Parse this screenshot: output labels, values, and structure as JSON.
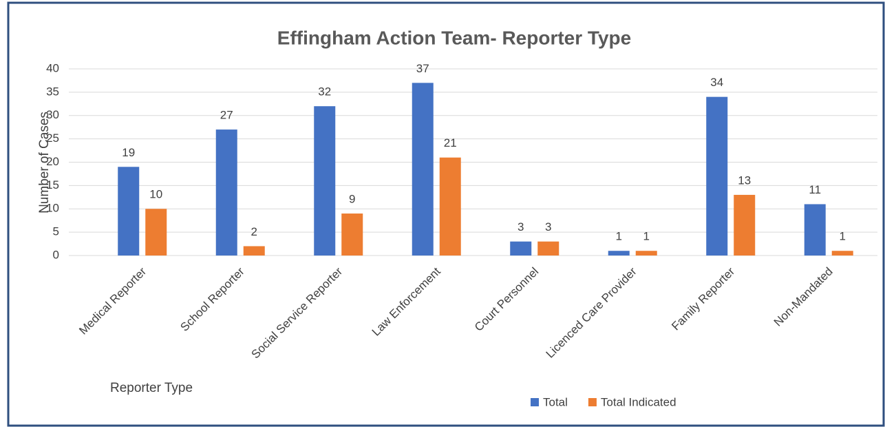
{
  "chart_data": {
    "type": "bar",
    "title": "Effingham Action Team- Reporter Type",
    "x_label": "Reporter Type",
    "y_label": "Number of Cases",
    "categories": [
      "Medical Reporter",
      "School Reporter",
      "Social Service Reporter",
      "Law Enforcement",
      "Court Personnel",
      "Licenced Care Provider",
      "Family Reporter",
      "Non-Mandated"
    ],
    "series": [
      {
        "name": "Total",
        "color": "#4472c4",
        "values": [
          19,
          27,
          32,
          37,
          3,
          1,
          34,
          11
        ]
      },
      {
        "name": "Total Indicated",
        "color": "#ed7d31",
        "values": [
          10,
          2,
          9,
          21,
          3,
          1,
          13,
          1
        ]
      }
    ],
    "ylim": [
      0,
      40
    ],
    "yticks": [
      0,
      5,
      10,
      15,
      20,
      25,
      30,
      35,
      40
    ],
    "grid": true,
    "legend": "bottom"
  }
}
